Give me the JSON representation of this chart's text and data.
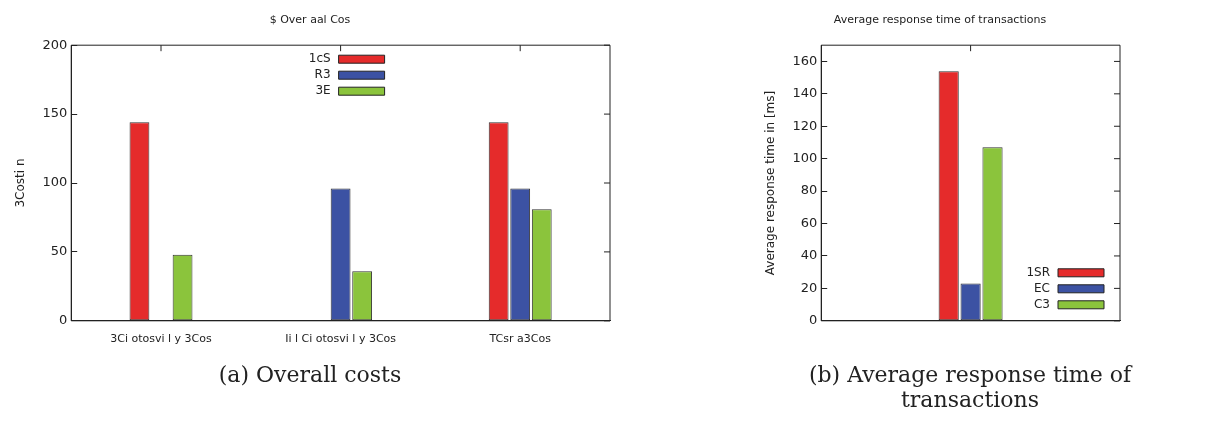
{
  "chart_data": [
    {
      "type": "bar",
      "title": "$ Over aal Cos",
      "ylabel": "3Costi n",
      "categories": [
        "3Ci otosvi l y 3Cos",
        "Ii l Ci otosvi l y 3Cos",
        "TCsr a3Cos"
      ],
      "series": [
        {
          "name": "1cS",
          "color": "#e52b2b",
          "values": [
            144,
            0,
            144
          ]
        },
        {
          "name": "R3",
          "color": "#3c52a3",
          "values": [
            0,
            96,
            96
          ]
        },
        {
          "name": "3E",
          "color": "#8bc43c",
          "values": [
            48,
            36,
            81
          ]
        }
      ],
      "ylim": [
        0,
        200
      ],
      "yticks": [
        0,
        50,
        100,
        150,
        200
      ],
      "grid": false,
      "legend": "top",
      "annotations": [
        "(a) Overall costs"
      ]
    },
    {
      "type": "bar",
      "title": "Average response time of transactions",
      "ylabel": "Average response time in [ms]",
      "categories": [
        null
      ],
      "series": [
        {
          "name": "1SR",
          "color": "#e52b2b",
          "values": [
            154
          ]
        },
        {
          "name": "EC",
          "color": "#3c52a3",
          "values": [
            23
          ]
        },
        {
          "name": "C3",
          "color": "#8bc43c",
          "values": [
            107
          ]
        }
      ],
      "ylim": [
        0,
        170
      ],
      "yticks": [
        0,
        20,
        40,
        60,
        80,
        100,
        120,
        140,
        160
      ],
      "grid": false,
      "legend": "bottom right",
      "annotations": [
        "(b) Average response time of transactions"
      ]
    }
  ]
}
